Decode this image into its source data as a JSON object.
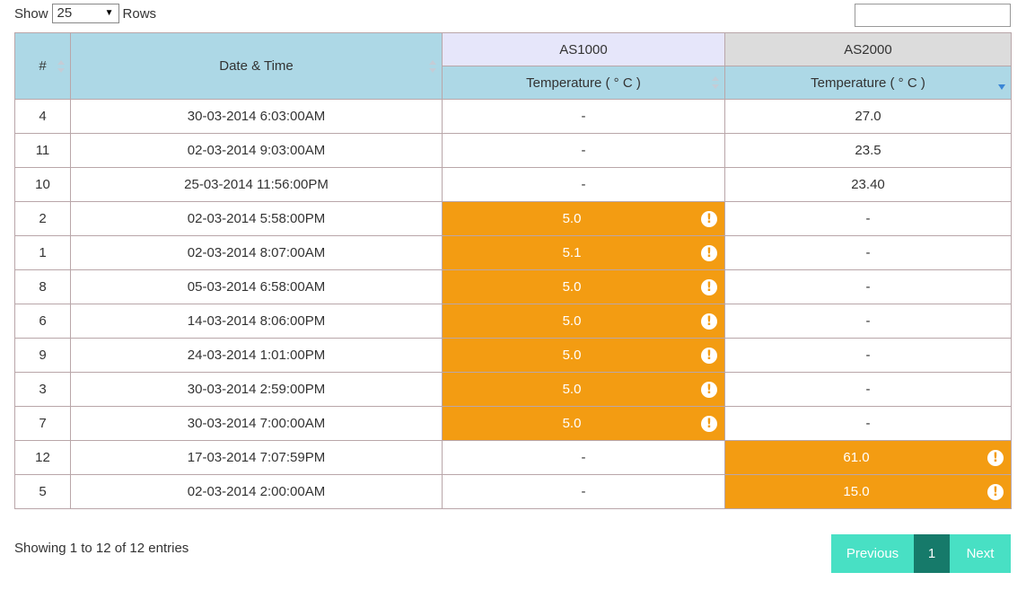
{
  "toolbar": {
    "show_label": "Show",
    "page_size": "25",
    "rows_label": "Rows",
    "search_value": ""
  },
  "table": {
    "headers": {
      "index": "#",
      "datetime": "Date & Time",
      "group1": "AS1000",
      "group2": "AS2000",
      "temp1": "Temperature ( ° C )",
      "temp2": "Temperature ( ° C )"
    },
    "rows": [
      {
        "id": "4",
        "datetime": "30-03-2014 6:03:00AM",
        "as1000": "-",
        "as2000": "27.0"
      },
      {
        "id": "11",
        "datetime": "02-03-2014 9:03:00AM",
        "as1000": "-",
        "as2000": "23.5"
      },
      {
        "id": "10",
        "datetime": "25-03-2014 11:56:00PM",
        "as1000": "-",
        "as2000": "23.40"
      },
      {
        "id": "2",
        "datetime": "02-03-2014 5:58:00PM",
        "as1000": "5.0",
        "as2000": "-"
      },
      {
        "id": "1",
        "datetime": "02-03-2014 8:07:00AM",
        "as1000": "5.1",
        "as2000": "-"
      },
      {
        "id": "8",
        "datetime": "05-03-2014 6:58:00AM",
        "as1000": "5.0",
        "as2000": "-"
      },
      {
        "id": "6",
        "datetime": "14-03-2014 8:06:00PM",
        "as1000": "5.0",
        "as2000": "-"
      },
      {
        "id": "9",
        "datetime": "24-03-2014 1:01:00PM",
        "as1000": "5.0",
        "as2000": "-"
      },
      {
        "id": "3",
        "datetime": "30-03-2014 2:59:00PM",
        "as1000": "5.0",
        "as2000": "-"
      },
      {
        "id": "7",
        "datetime": "30-03-2014 7:00:00AM",
        "as1000": "5.0",
        "as2000": "-"
      },
      {
        "id": "12",
        "datetime": "17-03-2014 7:07:59PM",
        "as1000": "-",
        "as2000": "61.0"
      },
      {
        "id": "5",
        "datetime": "02-03-2014 2:00:00AM",
        "as1000": "-",
        "as2000": "15.0"
      }
    ],
    "alert_icon": "exclamation-circle-icon",
    "alert_glyph": "!"
  },
  "footer": {
    "info": "Showing 1 to 12 of 12 entries",
    "prev": "Previous",
    "page": "1",
    "next": "Next"
  },
  "colors": {
    "header_blue": "#add8e6",
    "header_lavender": "#e6e6fa",
    "header_grey": "#dcdcdc",
    "alert": "#f39c12",
    "pager": "#48e0c4",
    "pager_active": "#167a6a"
  }
}
